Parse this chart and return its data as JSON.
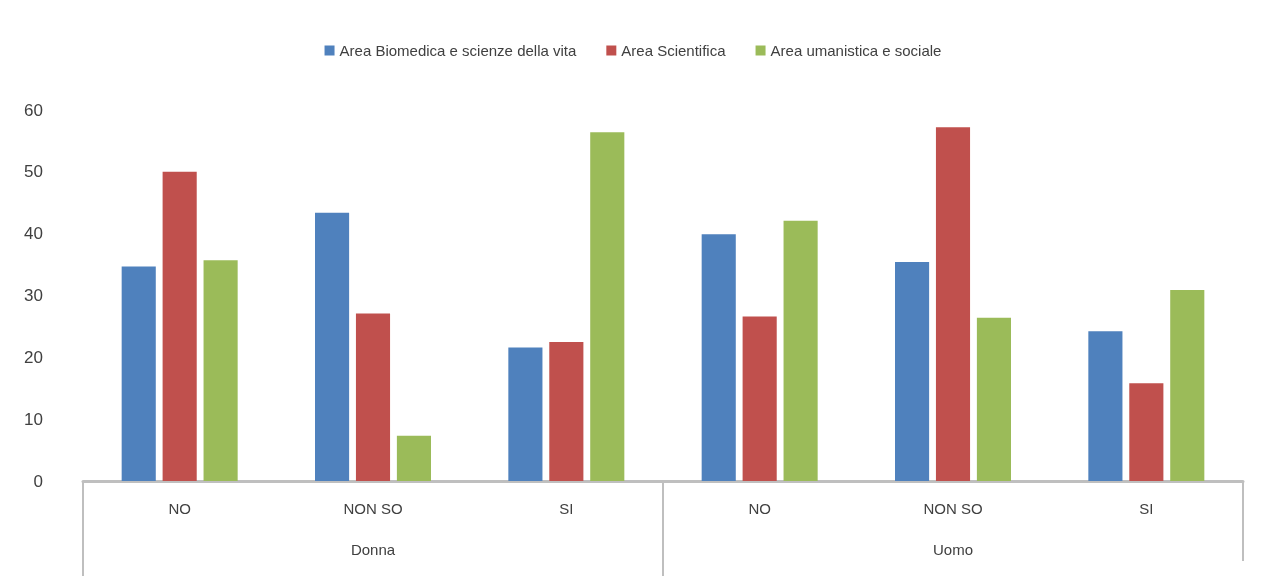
{
  "chart_data": {
    "type": "bar",
    "categories": [
      "NO",
      "NON SO",
      "SI",
      "NO",
      "NON SO",
      "SI"
    ],
    "series": [
      {
        "name": "Area Biomedica e scienze della vita",
        "color": "#4f81bd",
        "values": [
          34.7,
          43.4,
          21.6,
          39.9,
          35.4,
          24.2
        ]
      },
      {
        "name": "Area Scientifica",
        "color": "#c0504d",
        "values": [
          50.0,
          27.1,
          22.5,
          26.6,
          57.2,
          15.8
        ]
      },
      {
        "name": "Area umanistica e sociale",
        "color": "#9bbb59",
        "values": [
          35.7,
          7.3,
          56.4,
          42.1,
          26.4,
          30.9
        ]
      }
    ],
    "annotations": [
      "Donna",
      "Uomo"
    ],
    "ylim": [
      0,
      60
    ],
    "yticks": [
      0,
      10,
      20,
      30,
      40,
      50,
      60
    ],
    "grid": false,
    "legend": "top"
  }
}
